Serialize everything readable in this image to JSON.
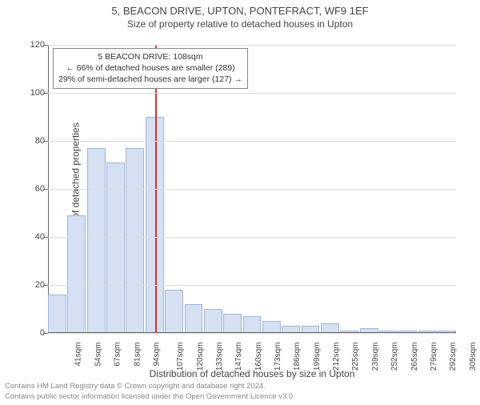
{
  "title": "5, BEACON DRIVE, UPTON, PONTEFRACT, WF9 1EF",
  "subtitle": "Size of property relative to detached houses in Upton",
  "chart": {
    "type": "histogram",
    "ylabel": "Number of detached properties",
    "xlabel": "Distribution of detached houses by size in Upton",
    "ylim_max": 120,
    "ytick_step": 20,
    "bar_fill": "#d5e0f2",
    "bar_stroke": "#9fb6dd",
    "grid_color": "#dcdcdc",
    "background": "#ffffff",
    "marker_color": "#d93030",
    "marker_x_value": 108,
    "x_min": 35,
    "x_max": 312,
    "categories": [
      "41sqm",
      "54sqm",
      "67sqm",
      "81sqm",
      "94sqm",
      "107sqm",
      "120sqm",
      "133sqm",
      "147sqm",
      "160sqm",
      "173sqm",
      "186sqm",
      "199sqm",
      "212sqm",
      "225sqm",
      "239sqm",
      "252sqm",
      "265sqm",
      "279sqm",
      "292sqm",
      "305sqm"
    ],
    "values": [
      16,
      49,
      77,
      71,
      77,
      90,
      18,
      12,
      10,
      8,
      7,
      5,
      3,
      3,
      4,
      1,
      2,
      1,
      1,
      1,
      1
    ]
  },
  "annotation": {
    "line1": "5 BEACON DRIVE: 108sqm",
    "line2": "← 66% of detached houses are smaller (289)",
    "line3": "29% of semi-detached houses are larger (127) →"
  },
  "footer": {
    "line1": "Contains HM Land Registry data © Crown copyright and database right 2024.",
    "line2": "Contains public sector information licensed under the Open Government Licence v3.0."
  }
}
